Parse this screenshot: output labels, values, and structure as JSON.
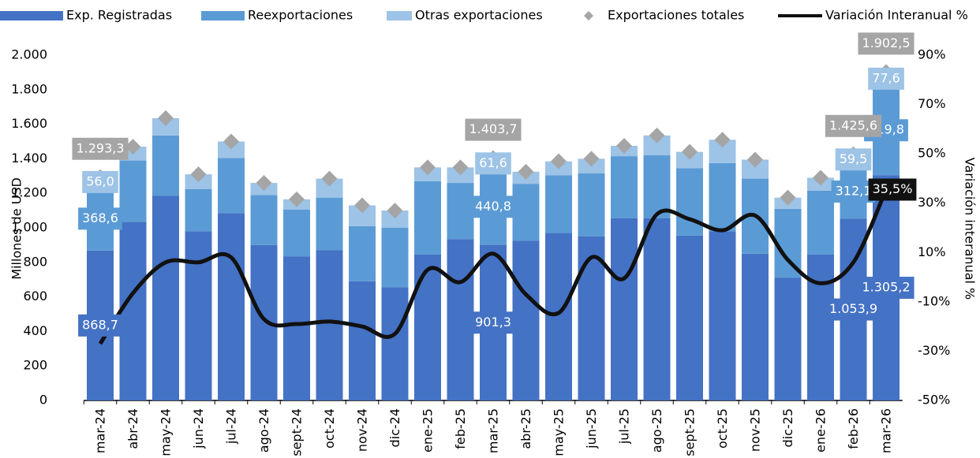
{
  "chart_data": {
    "type": "bar",
    "stacked": true,
    "categories": [
      "mar-24",
      "abr-24",
      "may-24",
      "jun-24",
      "jul-24",
      "ago-24",
      "sept-24",
      "oct-24",
      "nov-24",
      "dic-24",
      "ene-25",
      "feb-25",
      "mar-25",
      "abr-25",
      "may-25",
      "jun-25",
      "jul-25",
      "ago-25",
      "sept-25",
      "oct-25",
      "nov-25",
      "dic-25",
      "ene-26",
      "feb-26",
      "mar-26"
    ],
    "series": [
      {
        "name": "Exp. Registradas",
        "color": "#4472c4",
        "values": [
          868.7,
          1035,
          1185,
          980,
          1085,
          900,
          835,
          870,
          690,
          655,
          845,
          935,
          901.3,
          925,
          970,
          950,
          1055,
          1055,
          955,
          980,
          850,
          710,
          845,
          1053.9,
          1305.2
        ],
        "value_labels": [
          "868,7",
          null,
          null,
          null,
          null,
          null,
          null,
          null,
          null,
          null,
          null,
          null,
          "901,3",
          null,
          null,
          null,
          null,
          null,
          null,
          null,
          null,
          null,
          null,
          "1.053,9",
          "1.305,2"
        ]
      },
      {
        "name": "Reexportaciones",
        "color": "#5b9bd5",
        "values": [
          368.6,
          355,
          350,
          245,
          320,
          290,
          270,
          305,
          320,
          345,
          425,
          325,
          440.8,
          330,
          335,
          365,
          360,
          365,
          390,
          395,
          435,
          400,
          370,
          312.1,
          519.8
        ],
        "value_labels": [
          "368,6",
          null,
          null,
          null,
          null,
          null,
          null,
          null,
          null,
          null,
          null,
          null,
          "440,8",
          null,
          null,
          null,
          null,
          null,
          null,
          null,
          null,
          null,
          null,
          "312,1",
          "519,8"
        ]
      },
      {
        "name": "Otras exportaciones",
        "color": "#9dc3e6",
        "values": [
          56.0,
          80,
          100,
          85,
          95,
          70,
          60,
          110,
          120,
          100,
          80,
          90,
          61.6,
          70,
          80,
          85,
          60,
          115,
          95,
          135,
          110,
          65,
          75,
          59.5,
          77.6
        ],
        "value_labels": [
          "56,0",
          null,
          null,
          null,
          null,
          null,
          null,
          null,
          null,
          null,
          null,
          null,
          "61,6",
          null,
          null,
          null,
          null,
          null,
          null,
          null,
          null,
          null,
          null,
          "59,5",
          "77,6"
        ]
      },
      {
        "name": "Exportaciones  totales",
        "type": "scatter",
        "marker": "diamond",
        "color": "#a5a5a5",
        "values": [
          1293.3,
          1470,
          1635,
          1310,
          1500,
          1260,
          1165,
          1285,
          1130,
          1100,
          1350,
          1350,
          1403.7,
          1325,
          1385,
          1400,
          1475,
          1535,
          1440,
          1510,
          1395,
          1175,
          1290,
          1425.6,
          1902.5
        ],
        "value_labels": [
          "1.293,3",
          null,
          null,
          null,
          null,
          null,
          null,
          null,
          null,
          null,
          null,
          null,
          "1.403,7",
          null,
          null,
          null,
          null,
          null,
          null,
          null,
          null,
          null,
          null,
          "1.425,6",
          "1.902,5"
        ]
      },
      {
        "name": "Variación Interanual %",
        "type": "line",
        "axis": "y2",
        "color": "#111111",
        "values": [
          -27,
          -6.5,
          6,
          6,
          8,
          -17,
          -19,
          -18,
          -20,
          -23,
          3,
          -2,
          9.5,
          -7,
          -14.5,
          8,
          -0.5,
          25.5,
          23.5,
          19,
          25,
          7,
          -2.5,
          6,
          35.5
        ],
        "value_labels": [
          null,
          null,
          null,
          null,
          null,
          null,
          null,
          null,
          null,
          null,
          null,
          null,
          null,
          null,
          null,
          null,
          null,
          null,
          null,
          null,
          null,
          null,
          null,
          null,
          "35,5%"
        ]
      }
    ],
    "ylabel": "Millones de USD",
    "y2label": "Variación interanual %",
    "ylim": [
      0,
      2000
    ],
    "yticks": [
      0,
      200,
      400,
      600,
      800,
      {
        "value": 1000,
        "label": "1.000"
      },
      {
        "value": 1200,
        "label": "1.200"
      },
      {
        "value": 1400,
        "label": "1.400"
      },
      {
        "value": 1600,
        "label": "1.600"
      },
      {
        "value": 1800,
        "label": "1.800"
      },
      {
        "value": 2000,
        "label": "2.000"
      }
    ],
    "y2lim": [
      -50,
      90
    ],
    "y2ticks": [
      {
        "value": -50,
        "label": "-50%"
      },
      {
        "value": -30,
        "label": "-30%"
      },
      {
        "value": -10,
        "label": "-10%"
      },
      {
        "value": 10,
        "label": "10%"
      },
      {
        "value": 30,
        "label": "30%"
      },
      {
        "value": 50,
        "label": "50%"
      },
      {
        "value": 70,
        "label": "70%"
      },
      {
        "value": 90,
        "label": "90%"
      }
    ],
    "grid": false,
    "legend": "top"
  }
}
